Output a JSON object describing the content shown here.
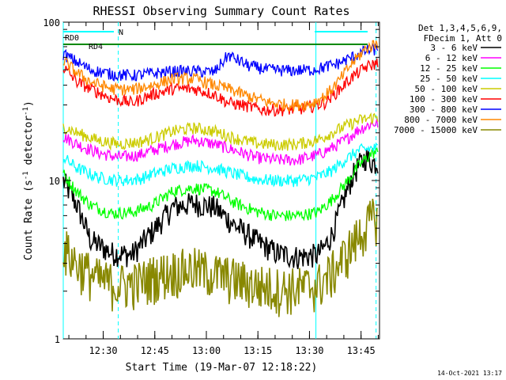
{
  "chart_data": {
    "type": "line",
    "title": "RHESSI Observing Summary Count Rates",
    "xlabel": "Start Time (19-Mar-07 12:18:22)",
    "ylabel_main": "Count Rate (s",
    "ylabel_sup1": "-1",
    "ylabel_mid": " detector",
    "ylabel_sup2": "-1",
    "ylabel_end": ")",
    "yscale": "log",
    "ylim": [
      1,
      100
    ],
    "xlim_minutes": [
      0,
      92
    ],
    "x_tick_labels": [
      "12:30",
      "12:45",
      "13:00",
      "13:15",
      "13:30",
      "13:45"
    ],
    "x_tick_minutes": [
      11.63,
      26.63,
      41.63,
      56.63,
      71.63,
      86.63
    ],
    "y_tick_labels": [
      "1",
      "10",
      "100"
    ],
    "y_tick_values": [
      1,
      10,
      100
    ],
    "legend_header": [
      "Det 1,3,4,5,6,9,",
      "FDecim 1, Att 0"
    ],
    "legend_placement": "right",
    "series": [
      {
        "name": "3 - 6 keV",
        "color": "#000000",
        "profile": [
          [
            0,
            10
          ],
          [
            4,
            7
          ],
          [
            8,
            4.2
          ],
          [
            14,
            3.5
          ],
          [
            20,
            3.4
          ],
          [
            26,
            4.8
          ],
          [
            32,
            6.8
          ],
          [
            38,
            7.2
          ],
          [
            44,
            6.8
          ],
          [
            50,
            5.2
          ],
          [
            56,
            4.2
          ],
          [
            62,
            3.5
          ],
          [
            68,
            3.3
          ],
          [
            74,
            3.4
          ],
          [
            76,
            3.8
          ],
          [
            78,
            4.5
          ],
          [
            80,
            6
          ],
          [
            82,
            8
          ],
          [
            84,
            10.5
          ],
          [
            86,
            12.5
          ],
          [
            88,
            14
          ],
          [
            90,
            13
          ],
          [
            92,
            13
          ]
        ]
      },
      {
        "name": "6 - 12 keV",
        "color": "#ff00ff",
        "profile": [
          [
            0,
            19
          ],
          [
            4,
            17
          ],
          [
            10,
            15
          ],
          [
            16,
            14
          ],
          [
            22,
            14.5
          ],
          [
            26,
            15.5
          ],
          [
            32,
            17
          ],
          [
            38,
            18
          ],
          [
            44,
            17
          ],
          [
            50,
            15.5
          ],
          [
            56,
            14
          ],
          [
            62,
            13.5
          ],
          [
            68,
            13.5
          ],
          [
            74,
            14.5
          ],
          [
            78,
            16
          ],
          [
            82,
            18
          ],
          [
            86,
            21
          ],
          [
            90,
            23
          ],
          [
            92,
            23
          ]
        ]
      },
      {
        "name": "12 - 25 keV",
        "color": "#00ff00",
        "profile": [
          [
            0,
            11
          ],
          [
            4,
            8.5
          ],
          [
            8,
            7
          ],
          [
            14,
            6.2
          ],
          [
            20,
            6.3
          ],
          [
            26,
            7
          ],
          [
            32,
            8.6
          ],
          [
            38,
            9
          ],
          [
            44,
            8.6
          ],
          [
            50,
            7.2
          ],
          [
            56,
            6.4
          ],
          [
            62,
            6
          ],
          [
            68,
            6
          ],
          [
            74,
            6.3
          ],
          [
            78,
            7.5
          ],
          [
            82,
            9.5
          ],
          [
            86,
            12.5
          ],
          [
            90,
            15
          ],
          [
            92,
            15
          ]
        ]
      },
      {
        "name": "25 - 50 keV",
        "color": "#00ffff",
        "profile": [
          [
            0,
            14
          ],
          [
            4,
            12
          ],
          [
            10,
            10.5
          ],
          [
            16,
            10
          ],
          [
            22,
            10.2
          ],
          [
            26,
            11
          ],
          [
            32,
            12
          ],
          [
            38,
            12.5
          ],
          [
            44,
            12
          ],
          [
            50,
            11
          ],
          [
            56,
            10.2
          ],
          [
            62,
            10
          ],
          [
            68,
            10
          ],
          [
            74,
            10.5
          ],
          [
            78,
            11.5
          ],
          [
            82,
            13.5
          ],
          [
            86,
            15.5
          ],
          [
            90,
            16
          ],
          [
            92,
            16
          ]
        ]
      },
      {
        "name": "50 - 100 keV",
        "color": "#cccc00",
        "profile": [
          [
            0,
            22
          ],
          [
            4,
            20
          ],
          [
            10,
            18
          ],
          [
            16,
            17
          ],
          [
            22,
            17.5
          ],
          [
            26,
            18.5
          ],
          [
            32,
            20.5
          ],
          [
            38,
            21.5
          ],
          [
            44,
            20.5
          ],
          [
            50,
            18.5
          ],
          [
            56,
            17.2
          ],
          [
            62,
            16.8
          ],
          [
            68,
            17
          ],
          [
            74,
            18
          ],
          [
            78,
            20
          ],
          [
            82,
            22
          ],
          [
            86,
            24
          ],
          [
            90,
            25
          ],
          [
            92,
            25
          ]
        ]
      },
      {
        "name": "100 - 300 keV",
        "color": "#ff0000",
        "profile": [
          [
            0,
            52
          ],
          [
            4,
            42
          ],
          [
            8,
            38
          ],
          [
            14,
            33
          ],
          [
            20,
            31
          ],
          [
            26,
            35
          ],
          [
            32,
            38
          ],
          [
            38,
            38
          ],
          [
            44,
            35
          ],
          [
            48,
            31
          ],
          [
            52,
            30
          ],
          [
            58,
            28
          ],
          [
            64,
            28
          ],
          [
            70,
            28.5
          ],
          [
            76,
            31
          ],
          [
            80,
            37
          ],
          [
            84,
            45
          ],
          [
            88,
            52
          ],
          [
            92,
            56
          ]
        ]
      },
      {
        "name": "300 - 800 keV",
        "color": "#0000ff",
        "profile": [
          [
            0,
            63
          ],
          [
            4,
            56
          ],
          [
            8,
            50
          ],
          [
            14,
            47
          ],
          [
            20,
            46
          ],
          [
            26,
            47.5
          ],
          [
            32,
            49
          ],
          [
            38,
            49
          ],
          [
            44,
            48.5
          ],
          [
            48,
            62
          ],
          [
            54,
            53
          ],
          [
            60,
            50
          ],
          [
            66,
            49.5
          ],
          [
            72,
            50
          ],
          [
            76,
            52
          ],
          [
            80,
            55
          ],
          [
            84,
            60
          ],
          [
            88,
            66
          ],
          [
            92,
            68
          ]
        ]
      },
      {
        "name": "800 - 7000 keV",
        "color": "#ff8800",
        "profile": [
          [
            0,
            57
          ],
          [
            4,
            48
          ],
          [
            8,
            42
          ],
          [
            14,
            38
          ],
          [
            20,
            37.5
          ],
          [
            26,
            40
          ],
          [
            32,
            44
          ],
          [
            38,
            44
          ],
          [
            44,
            40
          ],
          [
            48,
            38
          ],
          [
            54,
            34
          ],
          [
            60,
            31
          ],
          [
            66,
            30
          ],
          [
            72,
            30.5
          ],
          [
            76,
            34
          ],
          [
            80,
            42
          ],
          [
            84,
            55
          ],
          [
            88,
            68
          ],
          [
            92,
            75
          ]
        ]
      },
      {
        "name": "7000 - 15000 keV",
        "color": "#888800",
        "profile": [
          [
            0,
            3.8
          ],
          [
            4,
            3.0
          ],
          [
            10,
            2.4
          ],
          [
            16,
            2.2
          ],
          [
            22,
            2.3
          ],
          [
            26,
            2.5
          ],
          [
            32,
            2.7
          ],
          [
            38,
            2.8
          ],
          [
            44,
            2.6
          ],
          [
            50,
            2.4
          ],
          [
            56,
            2.2
          ],
          [
            62,
            2.1
          ],
          [
            68,
            2.1
          ],
          [
            74,
            2.2
          ],
          [
            78,
            2.6
          ],
          [
            82,
            3.4
          ],
          [
            86,
            4.5
          ],
          [
            90,
            5.8
          ],
          [
            92,
            6
          ]
        ]
      }
    ],
    "annotations": {
      "flags": [
        "RD0",
        "RD4",
        "N"
      ],
      "saa_markers_minutes": [
        0,
        16,
        73.5,
        91
      ]
    },
    "timestamp": "14-Oct-2021 13:17"
  }
}
